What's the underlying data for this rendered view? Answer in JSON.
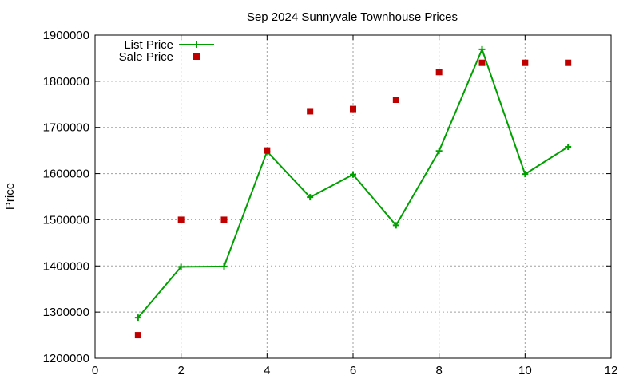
{
  "chart_data": {
    "type": "line",
    "title": "Sep 2024 Sunnyvale Townhouse Prices",
    "xlabel": "",
    "ylabel": "Price",
    "xlim": [
      0,
      12
    ],
    "ylim": [
      1200000,
      1900000
    ],
    "x_ticks": [
      "0",
      "2",
      "4",
      "6",
      "8",
      "10",
      "12"
    ],
    "y_ticks": [
      "1200000",
      "1300000",
      "1400000",
      "1500000",
      "1600000",
      "1700000",
      "1800000",
      "1900000"
    ],
    "grid": true,
    "legend_position": "top-left",
    "series": [
      {
        "name": "List Price",
        "style": "lines+crosses",
        "color": "#00a000",
        "x": [
          1,
          2,
          3,
          4,
          5,
          6,
          7,
          8,
          9,
          10,
          11
        ],
        "y": [
          1288000,
          1398000,
          1399000,
          1648000,
          1549000,
          1598000,
          1488000,
          1649000,
          1869000,
          1599000,
          1658000
        ]
      },
      {
        "name": "Sale Price",
        "style": "squares",
        "color": "#c00000",
        "x": [
          1,
          2,
          3,
          4,
          5,
          6,
          7,
          8,
          9,
          10,
          11
        ],
        "y": [
          1250000,
          1500000,
          1500000,
          1650000,
          1735000,
          1740000,
          1760000,
          1820000,
          1840000,
          1840000,
          1840000
        ]
      }
    ]
  }
}
